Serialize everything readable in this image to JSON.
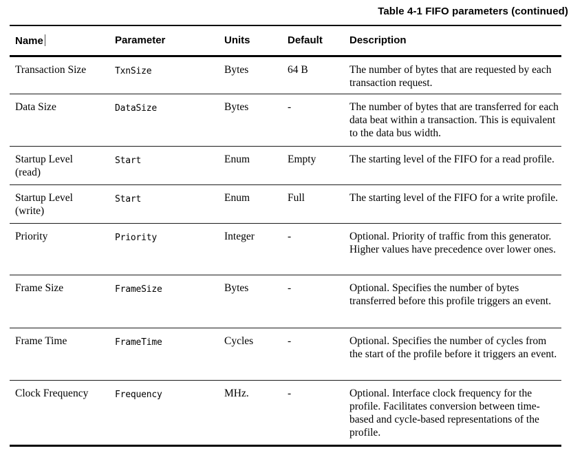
{
  "caption": "Table 4-1 FIFO parameters (continued)",
  "table": {
    "columns": [
      "Name",
      "Parameter",
      "Units",
      "Default",
      "Description"
    ],
    "rows": [
      {
        "name": "Transaction Size",
        "parameter": "TxnSize",
        "units": "Bytes",
        "default": "64 B",
        "description": "The number of bytes that are requested by each transaction request."
      },
      {
        "name": "Data Size",
        "parameter": "DataSize",
        "units": "Bytes",
        "default": "-",
        "description": "The number of bytes that are transferred for each data beat within a transaction. This is equivalent to the data bus width."
      },
      {
        "name": "Startup Level (read)",
        "parameter": "Start",
        "units": "Enum",
        "default": "Empty",
        "description": "The starting level of the FIFO for a read profile."
      },
      {
        "name": "Startup Level (write)",
        "parameter": "Start",
        "units": "Enum",
        "default": "Full",
        "description": "The starting level of the FIFO for a write profile."
      },
      {
        "name": "Priority",
        "parameter": "Priority",
        "units": "Integer",
        "default": "-",
        "description": "Optional. Priority of traffic from this generator. Higher values have precedence over lower ones."
      },
      {
        "name": "Frame Size",
        "parameter": "FrameSize",
        "units": "Bytes",
        "default": "-",
        "description": "Optional. Specifies the number of bytes transferred before this profile triggers an event."
      },
      {
        "name": "Frame Time",
        "parameter": "FrameTime",
        "units": "Cycles",
        "default": "-",
        "description": "Optional. Specifies the number of cycles from the start of the profile before it triggers an event."
      },
      {
        "name": "Clock Frequency",
        "parameter": "Frequency",
        "units": "MHz.",
        "default": "-",
        "description": "Optional. Interface clock frequency for the profile. Facilitates conversion between time-based and cycle-based representations of the profile."
      }
    ]
  }
}
